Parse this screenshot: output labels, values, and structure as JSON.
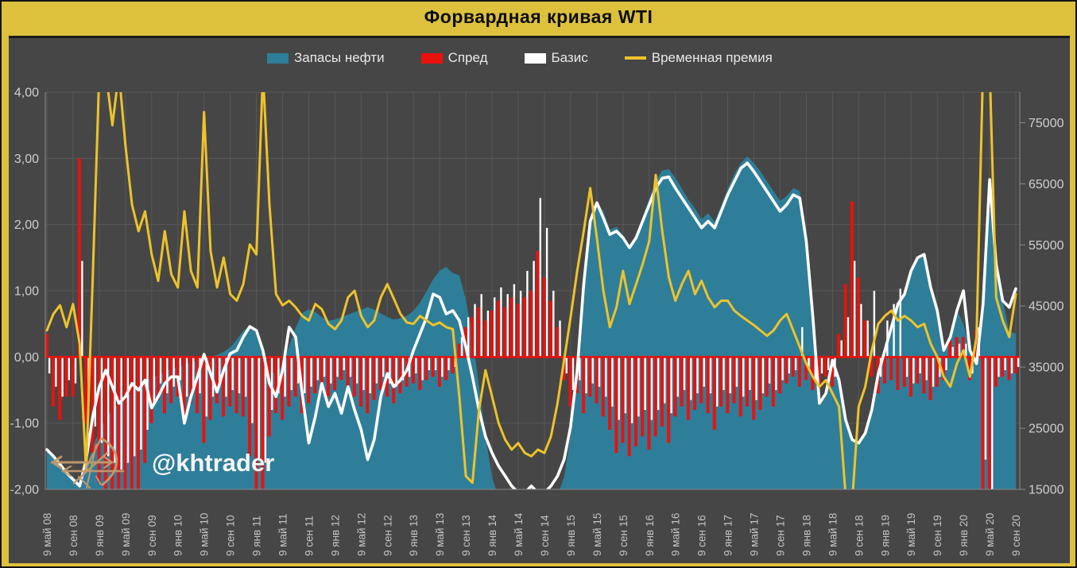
{
  "window": {
    "title": "Форвардная кривая WTI"
  },
  "watermark": {
    "text": "@khtrader",
    "logo_color": "#c49a6c"
  },
  "colors": {
    "frame": "#ddc13d",
    "panel_bg": "#464646",
    "grid": "#585858",
    "axis_line": "#8a8a8a",
    "axis_text": "#cfcfcf",
    "x_text": "#c3c3c3",
    "title_text": "#0d0d0d",
    "legend_text": "#e9e9e9"
  },
  "legend": {
    "items": [
      {
        "label": "Запасы нефти",
        "color": "#2e7e99",
        "swatch": "rect"
      },
      {
        "label": "Спред",
        "color": "#e8120e",
        "swatch": "rect"
      },
      {
        "label": "Базис",
        "color": "#ffffff",
        "swatch": "rect"
      },
      {
        "label": "Временная премия",
        "color": "#edc32b",
        "swatch": "line"
      }
    ]
  },
  "chart_data": {
    "type": "combo",
    "title": "Форвардная кривая WTI",
    "grid": true,
    "x_start": "2008-05",
    "x_end": "2020-09",
    "x_step": "1 month",
    "x_tick_labels": [
      "9 май 08",
      "9 сен 08",
      "9 янв 09",
      "9 май 09",
      "9 сен 09",
      "9 янв 10",
      "9 май 10",
      "9 сен 10",
      "9 янв 11",
      "9 май 11",
      "9 сен 11",
      "9 янв 12",
      "9 май 12",
      "9 сен 12",
      "9 янв 13",
      "9 май 13",
      "9 сен 13",
      "9 янв 14",
      "9 май 14",
      "9 сен 14",
      "9 янв 15",
      "9 май 15",
      "9 сен 15",
      "9 янв 16",
      "9 май 16",
      "9 сен 16",
      "9 янв 17",
      "9 май 17",
      "9 сен 17",
      "9 янв 18",
      "9 май 18",
      "9 сен 18",
      "9 янв 19",
      "9 май 19",
      "9 сен 19",
      "9 янв 20",
      "9 май 20",
      "9 сен 20"
    ],
    "left_axis": {
      "min": -2,
      "max": 4,
      "grid_values": [
        4,
        3,
        2,
        1,
        0,
        -1
      ],
      "ticks": [
        {
          "v": 4,
          "label": "4,00"
        },
        {
          "v": 3,
          "label": "3,00"
        },
        {
          "v": 2,
          "label": "2,00"
        },
        {
          "v": 1,
          "label": "1,00"
        },
        {
          "v": 0,
          "label": "0,00"
        },
        {
          "v": -1,
          "label": "-1,00"
        },
        {
          "v": -2,
          "label": "-2,00"
        }
      ]
    },
    "right_axis": {
      "min": 15000,
      "max": 80000,
      "ticks": [
        {
          "v": 75000,
          "label": "75000"
        },
        {
          "v": 65000,
          "label": "65000"
        },
        {
          "v": 55000,
          "label": "55000"
        },
        {
          "v": 45000,
          "label": "45000"
        },
        {
          "v": 35000,
          "label": "35000"
        },
        {
          "v": 25000,
          "label": "25000"
        },
        {
          "v": 15000,
          "label": "15000"
        }
      ]
    },
    "series": [
      {
        "id": "inventories",
        "name": "Запасы нефти",
        "type": "area",
        "axis": "right",
        "color": "#2e7e99",
        "values": [
          21500,
          20500,
          19000,
          17800,
          17000,
          16200,
          18500,
          22000,
          24500,
          26500,
          28000,
          29000,
          30000,
          31000,
          32000,
          32800,
          33200,
          33600,
          34200,
          34800,
          35000,
          35400,
          35800,
          36000,
          36300,
          36600,
          37000,
          37500,
          38200,
          39500,
          41000,
          41600,
          40500,
          37500,
          34500,
          33800,
          35500,
          38500,
          41500,
          43800,
          44500,
          44000,
          43200,
          42600,
          42800,
          43200,
          43600,
          44000,
          44400,
          44800,
          44400,
          43800,
          43200,
          42800,
          43000,
          43400,
          44200,
          45600,
          47400,
          49400,
          50800,
          51400,
          50400,
          50000,
          46000,
          40000,
          32000,
          23700,
          17000,
          13500,
          12500,
          12000,
          11500,
          11500,
          12000,
          12000,
          12500,
          13000,
          14000,
          17000,
          24000,
          36000,
          50000,
          59500,
          62000,
          60500,
          57500,
          58000,
          56500,
          54500,
          56500,
          59500,
          62500,
          65500,
          67200,
          67400,
          66000,
          64200,
          62400,
          61000,
          59200,
          60200,
          58800,
          61500,
          64200,
          66600,
          68400,
          69500,
          68400,
          67000,
          65400,
          63800,
          62200,
          63000,
          64300,
          63800,
          57500,
          44500,
          29000,
          30500,
          36200,
          33000,
          26000,
          23500,
          22800,
          24200,
          28000,
          34000,
          37800,
          41500,
          45300,
          47000,
          50800,
          53000,
          53500,
          48000,
          44200,
          37600,
          39800,
          44400,
          42000,
          38200,
          36400,
          44500,
          61000,
          51800,
          45800,
          40800,
          40500
        ]
      },
      {
        "id": "spread",
        "name": "Спред",
        "type": "bar",
        "axis": "left",
        "color": "#e8120e",
        "values": [
          0.35,
          -0.75,
          -0.95,
          -0.6,
          -0.6,
          3.0,
          -1.0,
          -1.45,
          -1.9,
          -2.1,
          -2.1,
          -2.2,
          -2.2,
          -2.2,
          -2.1,
          -1.6,
          -1.0,
          -0.65,
          -0.85,
          -0.7,
          -0.6,
          -0.9,
          -0.7,
          -0.85,
          -1.3,
          -0.95,
          -0.7,
          -0.9,
          -0.75,
          -0.85,
          -0.9,
          -1.5,
          -2.1,
          -2.15,
          -1.2,
          -0.85,
          -0.95,
          -0.75,
          -0.6,
          -0.85,
          -0.7,
          -0.55,
          -0.45,
          -0.6,
          -0.5,
          -0.35,
          -0.45,
          -0.6,
          -0.75,
          -0.85,
          -0.65,
          -0.5,
          -0.6,
          -0.7,
          -0.55,
          -0.45,
          -0.4,
          -0.5,
          -0.35,
          -0.3,
          -0.45,
          -0.35,
          -0.25,
          0.2,
          0.45,
          0.6,
          0.75,
          0.55,
          0.7,
          0.85,
          0.75,
          0.9,
          0.8,
          0.9,
          1.0,
          1.6,
          1.2,
          0.85,
          0.45,
          -0.35,
          -0.75,
          -0.55,
          -0.85,
          -0.6,
          -0.7,
          -0.9,
          -1.1,
          -1.45,
          -1.3,
          -1.5,
          -1.35,
          -1.2,
          -1.4,
          -1.2,
          -1.05,
          -1.3,
          -0.9,
          -0.75,
          -0.95,
          -0.8,
          -0.7,
          -0.85,
          -1.1,
          -0.75,
          -0.85,
          -0.7,
          -0.9,
          -0.75,
          -0.95,
          -0.8,
          -0.6,
          -0.75,
          -0.55,
          -0.4,
          -0.3,
          -0.45,
          -0.35,
          -0.5,
          -0.4,
          -0.3,
          -0.45,
          0.35,
          1.1,
          2.35,
          1.2,
          0.55,
          -0.3,
          -0.55,
          -0.4,
          -0.35,
          -0.5,
          -0.45,
          -0.6,
          -0.4,
          -0.55,
          -0.65,
          -0.45,
          -0.35,
          0.25,
          0.3,
          0.3,
          -0.35,
          0.4,
          -2.2,
          -2.2,
          -0.45,
          -0.3,
          -0.35,
          -0.25
        ]
      },
      {
        "id": "basis_bars",
        "name": "Базис",
        "type": "bar",
        "axis": "left",
        "color": "#ffffff",
        "values": [
          -0.25,
          -0.45,
          -0.6,
          -0.35,
          -0.4,
          1.45,
          -0.7,
          -1.05,
          -1.3,
          -1.5,
          -1.6,
          -1.7,
          -1.6,
          -1.5,
          -1.4,
          -1.1,
          -0.7,
          -0.4,
          -0.55,
          -0.45,
          -0.35,
          -0.6,
          -0.45,
          -0.55,
          -0.9,
          -0.6,
          -0.45,
          -0.6,
          -0.5,
          -0.55,
          -0.6,
          -1.0,
          -1.55,
          -1.6,
          -0.8,
          -0.55,
          -0.6,
          -0.5,
          -0.4,
          -0.55,
          -0.45,
          -0.35,
          -0.3,
          -0.4,
          -0.3,
          -0.2,
          -0.3,
          -0.4,
          -0.5,
          -0.55,
          -0.4,
          -0.3,
          -0.4,
          -0.45,
          -0.35,
          -0.3,
          -0.25,
          -0.35,
          -0.2,
          -0.2,
          -0.3,
          -0.2,
          -0.15,
          0.3,
          0.6,
          0.8,
          0.95,
          0.7,
          0.9,
          1.05,
          0.95,
          1.1,
          1.0,
          1.3,
          1.45,
          2.4,
          1.95,
          1.0,
          0.55,
          -0.25,
          -0.5,
          -0.35,
          -0.55,
          -0.4,
          -0.45,
          -0.6,
          -0.75,
          -0.95,
          -0.85,
          -1.0,
          -0.9,
          -0.8,
          -0.95,
          -0.8,
          -0.7,
          -0.85,
          -0.6,
          -0.5,
          -0.65,
          -0.55,
          -0.45,
          -0.55,
          -0.75,
          -0.5,
          -0.55,
          -0.45,
          -0.6,
          -0.5,
          -0.65,
          -0.55,
          -0.4,
          -0.5,
          -0.35,
          -0.25,
          -0.2,
          0.45,
          -0.2,
          -0.35,
          -0.25,
          -0.2,
          -0.3,
          0.25,
          0.6,
          1.45,
          0.8,
          0.55,
          1.0,
          -0.3,
          0.55,
          0.8,
          1.03,
          -0.3,
          -0.4,
          -0.25,
          -0.35,
          -0.45,
          -0.3,
          -0.2,
          0.15,
          0.2,
          0.2,
          -0.25,
          0.45,
          -1.55,
          -2.2,
          -0.3,
          -0.2,
          -0.25,
          -0.15
        ]
      },
      {
        "id": "basis_line",
        "name": "Базис",
        "type": "line",
        "axis": "left",
        "color": "#ffffff",
        "width": 3.6,
        "values": [
          -1.4,
          -1.5,
          -1.62,
          -1.75,
          -1.85,
          -1.95,
          -1.55,
          -0.9,
          -0.45,
          -0.2,
          -0.45,
          -0.7,
          -0.6,
          -0.4,
          -0.5,
          -0.35,
          -0.77,
          -0.6,
          -0.4,
          -0.3,
          -0.3,
          -1.0,
          -0.6,
          -0.3,
          0.04,
          -0.25,
          -0.53,
          -0.2,
          0.05,
          0.1,
          0.3,
          0.46,
          0.4,
          0.1,
          -0.4,
          -0.6,
          -0.2,
          0.45,
          0.3,
          -0.55,
          -1.3,
          -0.9,
          -0.4,
          -0.75,
          -0.55,
          -0.85,
          -0.45,
          -0.8,
          -1.1,
          -1.55,
          -1.25,
          -0.6,
          -0.25,
          -0.45,
          -0.35,
          -0.2,
          0.1,
          0.35,
          0.6,
          0.95,
          0.9,
          0.65,
          0.7,
          0.55,
          0.15,
          -0.3,
          -0.8,
          -1.2,
          -1.45,
          -1.65,
          -1.8,
          -1.95,
          -2.05,
          -2.05,
          -1.95,
          -2.05,
          -2.05,
          -1.95,
          -1.8,
          -1.55,
          -1.05,
          -0.2,
          1.1,
          2.05,
          2.33,
          2.1,
          1.85,
          1.9,
          1.8,
          1.65,
          1.8,
          2.05,
          2.3,
          2.55,
          2.7,
          2.72,
          2.55,
          2.4,
          2.25,
          2.1,
          1.95,
          2.05,
          1.95,
          2.2,
          2.45,
          2.65,
          2.85,
          2.93,
          2.8,
          2.65,
          2.5,
          2.35,
          2.2,
          2.3,
          2.45,
          2.4,
          1.75,
          0.6,
          -0.7,
          -0.55,
          -0.05,
          -0.35,
          -0.95,
          -1.25,
          -1.3,
          -1.15,
          -0.8,
          -0.25,
          0.1,
          0.45,
          0.8,
          0.95,
          1.3,
          1.5,
          1.55,
          1.05,
          0.7,
          0.1,
          0.3,
          0.7,
          1.0,
          0.1,
          -0.1,
          0.8,
          2.68,
          1.4,
          0.85,
          0.75,
          1.03
        ]
      },
      {
        "id": "premium",
        "name": "Временная премия",
        "type": "line",
        "axis": "left",
        "color": "#edc32b",
        "width": 3,
        "values": [
          0.4,
          0.65,
          0.78,
          0.45,
          0.8,
          0.2,
          -1.72,
          1.2,
          4.3,
          4.3,
          3.5,
          4.3,
          3.2,
          2.3,
          1.9,
          2.2,
          1.55,
          1.15,
          1.9,
          1.25,
          1.05,
          2.2,
          1.3,
          1.05,
          3.7,
          1.6,
          1.05,
          1.5,
          0.95,
          0.85,
          1.1,
          1.7,
          1.55,
          4.3,
          2.3,
          0.95,
          0.78,
          0.85,
          0.75,
          0.62,
          0.55,
          0.8,
          0.72,
          0.5,
          0.42,
          0.55,
          0.9,
          1.0,
          0.62,
          0.45,
          0.55,
          0.9,
          1.1,
          0.88,
          0.65,
          0.52,
          0.5,
          0.62,
          0.55,
          0.48,
          0.52,
          0.45,
          0.42,
          -0.6,
          -1.8,
          -1.9,
          -0.8,
          -0.2,
          -0.6,
          -1.0,
          -1.25,
          -1.4,
          -1.3,
          -1.45,
          -1.5,
          -1.4,
          -1.45,
          -1.2,
          -0.7,
          -0.05,
          0.6,
          1.3,
          1.9,
          2.55,
          1.8,
          1.0,
          0.45,
          0.75,
          1.3,
          0.8,
          1.1,
          1.4,
          1.75,
          2.75,
          1.9,
          1.2,
          0.85,
          1.1,
          1.3,
          0.95,
          1.15,
          0.9,
          0.75,
          0.85,
          0.85,
          0.7,
          0.62,
          0.55,
          0.48,
          0.4,
          0.32,
          0.4,
          0.55,
          0.65,
          0.4,
          0.15,
          -0.1,
          -0.3,
          -0.45,
          -0.35,
          -0.55,
          -0.75,
          -2.1,
          -2.2,
          -0.75,
          -0.45,
          0.1,
          0.5,
          0.62,
          0.7,
          0.55,
          0.62,
          0.55,
          0.45,
          0.5,
          0.2,
          0.0,
          -0.3,
          -0.45,
          -0.1,
          0.1,
          -0.3,
          0.3,
          4.4,
          4.4,
          0.9,
          0.55,
          0.3,
          0.95
        ]
      }
    ]
  }
}
